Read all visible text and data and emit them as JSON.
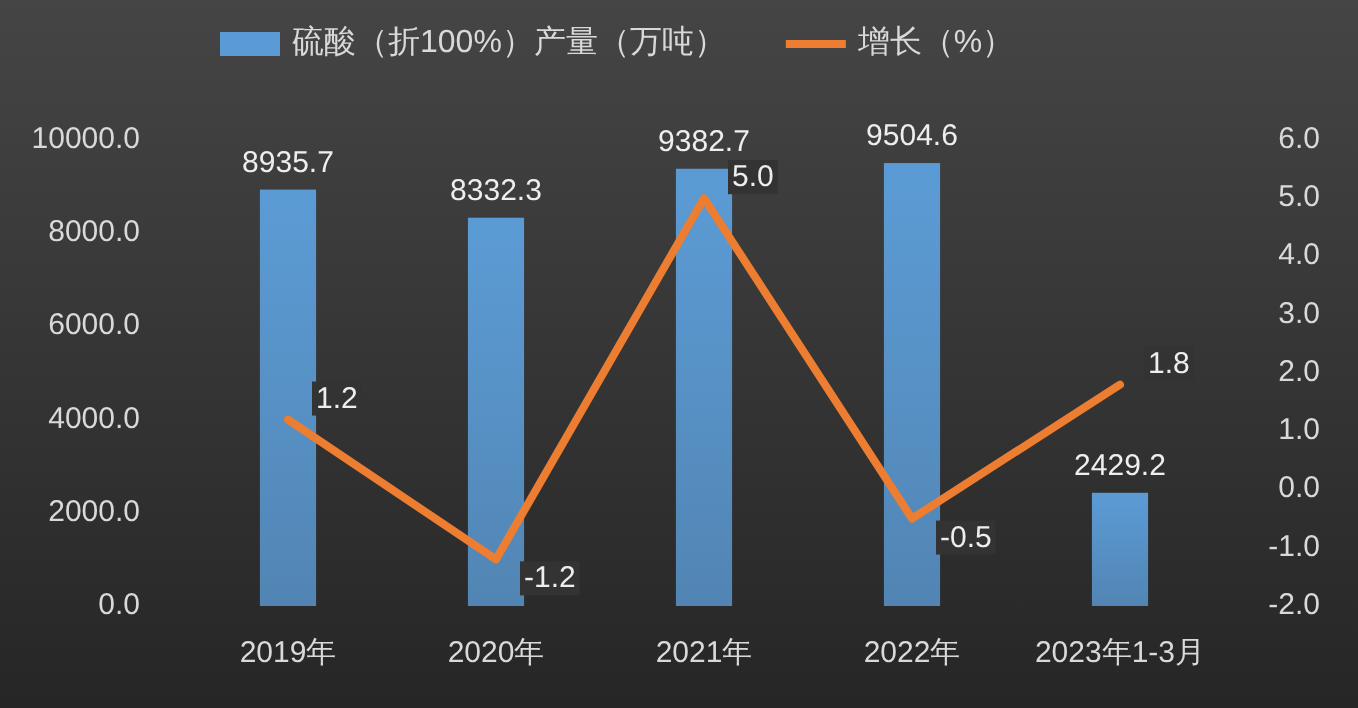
{
  "chart_data": {
    "type": "bar",
    "categories": [
      "2019年",
      "2020年",
      "2021年",
      "2022年",
      "2023年1-3月"
    ],
    "series": [
      {
        "name": "硫酸（折100%）产量（万吨）",
        "color": "#5b9bd5",
        "values": [
          8935.7,
          8332.3,
          9382.7,
          9504.6,
          2429.2
        ],
        "value_labels": [
          "8935.7",
          "8332.3",
          "9382.7",
          "9504.6",
          "2429.2"
        ]
      },
      {
        "name": "增长（%）",
        "type": "line",
        "axis": "y2",
        "color": "#ed7d31",
        "values": [
          1.2,
          -1.2,
          5.0,
          -0.5,
          1.8
        ],
        "value_labels": [
          "1.2",
          "-1.2",
          "5.0",
          "-0.5",
          "1.8"
        ]
      }
    ],
    "ylim": [
      0,
      10000
    ],
    "yticks": [
      {
        "value": 0,
        "label": "0.0"
      },
      {
        "value": 2000,
        "label": "2000.0"
      },
      {
        "value": 4000,
        "label": "4000.0"
      },
      {
        "value": 6000,
        "label": "6000.0"
      },
      {
        "value": 8000,
        "label": "8000.0"
      },
      {
        "value": 10000,
        "label": "10000.0"
      }
    ],
    "y2lim": [
      -2,
      6
    ],
    "y2ticks": [
      {
        "value": -2,
        "label": "-2.0"
      },
      {
        "value": -1,
        "label": "-1.0"
      },
      {
        "value": 0,
        "label": "0.0"
      },
      {
        "value": 1,
        "label": "1.0"
      },
      {
        "value": 2,
        "label": "2.0"
      },
      {
        "value": 3,
        "label": "3.0"
      },
      {
        "value": 4,
        "label": "4.0"
      },
      {
        "value": 5,
        "label": "5.0"
      },
      {
        "value": 6,
        "label": "6.0"
      }
    ],
    "legend": "top",
    "marker": "none",
    "line_style": "solid"
  }
}
